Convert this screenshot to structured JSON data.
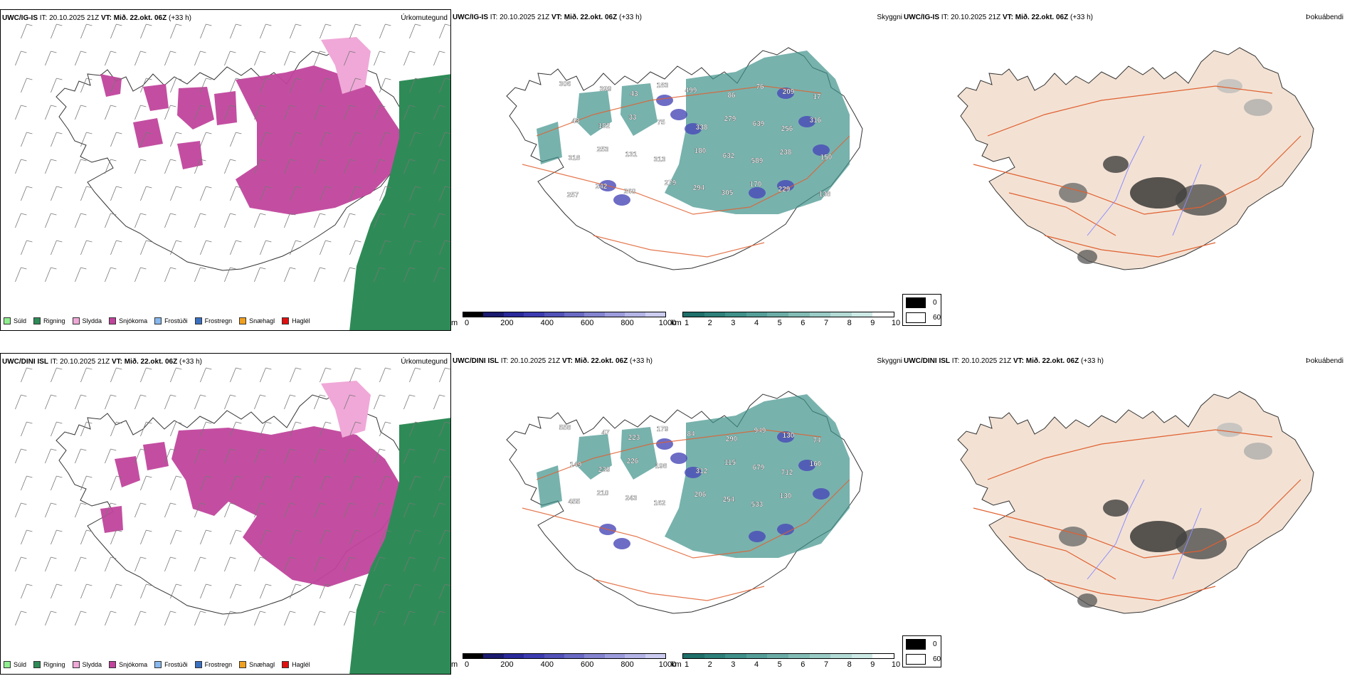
{
  "rows": [
    {
      "model": "UWC/IG-IS",
      "panels": [
        {
          "header": {
            "model": "UWC/IG-IS",
            "it": "IT: 20.10.2025 21Z",
            "vt_label": "VT:",
            "vt": "Mið. 22.okt. 06Z",
            "lead": "(+33 h)"
          },
          "title": "Úrkomutegund"
        },
        {
          "header": {
            "model": "UWC/IG-IS",
            "it": "IT: 20.10.2025 21Z",
            "vt_label": "VT:",
            "vt": "Mið. 22.okt. 06Z",
            "lead": "(+33 h)"
          },
          "title": "Skyggni"
        },
        {
          "header": {
            "model": "UWC/IG-IS",
            "it": "IT: 20.10.2025 21Z",
            "vt_label": "VT:",
            "vt": "Mið. 22.okt. 06Z",
            "lead": "(+33 h)"
          },
          "title": "Þokuábendi"
        }
      ],
      "visibility_labels": [
        "306",
        "399",
        "43",
        "183",
        "499",
        "86",
        "76",
        "209",
        "17",
        "43",
        "182",
        "33",
        "75",
        "338",
        "279",
        "639",
        "256",
        "316",
        "318",
        "253",
        "131",
        "313",
        "180",
        "632",
        "589",
        "238",
        "150",
        "257",
        "242",
        "260",
        "279",
        "294",
        "305",
        "170",
        "229",
        "138"
      ]
    },
    {
      "model": "UWC/DINI ISL",
      "panels": [
        {
          "header": {
            "model": "UWC/DINI ISL",
            "it": "IT: 20.10.2025 21Z",
            "vt_label": "VT:",
            "vt": "Mið. 22.okt. 06Z",
            "lead": "(+33 h)"
          },
          "title": "Úrkomutegund"
        },
        {
          "header": {
            "model": "UWC/DINI ISL",
            "it": "IT: 20.10.2025 21Z",
            "vt_label": "VT:",
            "vt": "Mið. 22.okt. 06Z",
            "lead": "(+33 h)"
          },
          "title": "Skyggni"
        },
        {
          "header": {
            "model": "UWC/DINI ISL",
            "it": "IT: 20.10.2025 21Z",
            "vt_label": "VT:",
            "vt": "Mið. 22.okt. 06Z",
            "lead": "(+33 h)"
          },
          "title": "Þokuábendi"
        }
      ],
      "visibility_labels": [
        "558",
        "47",
        "223",
        "179",
        "84",
        "290",
        "949",
        "130",
        "74",
        "149",
        "239",
        "226",
        "198",
        "312",
        "115",
        "679",
        "712",
        "160",
        "455",
        "210",
        "243",
        "162",
        "206",
        "254",
        "533",
        "130"
      ]
    }
  ],
  "precip_legend": [
    {
      "label": "Súld",
      "color": "#90ee90"
    },
    {
      "label": "Rigning",
      "color": "#2e8b57"
    },
    {
      "label": "Slydda",
      "color": "#f0a8d8"
    },
    {
      "label": "Snjókoma",
      "color": "#c0449c"
    },
    {
      "label": "Frostúði",
      "color": "#87b8ef"
    },
    {
      "label": "Frostregn",
      "color": "#3a6fc0"
    },
    {
      "label": "Snæhagl",
      "color": "#f0a020"
    },
    {
      "label": "Haglél",
      "color": "#e01010"
    }
  ],
  "ceiling_bar": {
    "unit": "m",
    "ticks": [
      "0",
      "200",
      "400",
      "600",
      "800",
      "1000"
    ],
    "colors": [
      "#000000",
      "#1a1a6e",
      "#2a2a9a",
      "#3c3cb0",
      "#5252b8",
      "#6a6ac4",
      "#8484d0",
      "#9c9cdc",
      "#b4b4e6",
      "#ccccf0"
    ]
  },
  "visibility_bar": {
    "unit": "km",
    "ticks": [
      "1",
      "2",
      "3",
      "4",
      "5",
      "6",
      "7",
      "8",
      "9",
      "10"
    ],
    "colors": [
      "#1f6f6a",
      "#2e807a",
      "#3f918a",
      "#559f98",
      "#6badA6",
      "#82bcb5",
      "#9acbc5",
      "#b3dad5",
      "#cde9e5",
      "#ffffff"
    ]
  },
  "fog_legend": [
    {
      "label": "0",
      "color": "#000000"
    },
    {
      "label": "60",
      "color": "#ffffff"
    }
  ],
  "colors": {
    "snow": "#c0449c",
    "sleet": "#f0a8d8",
    "rain": "#2e8b57",
    "fog_land": "#f3e2d4",
    "road": "#e06030",
    "river": "#8c8cff",
    "vis_teal": "#3f918a",
    "ceiling_blue": "#4848b8"
  }
}
